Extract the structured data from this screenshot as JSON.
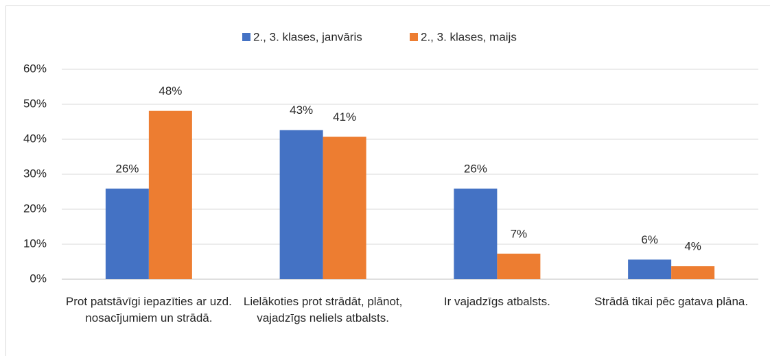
{
  "chart_data": {
    "type": "bar",
    "categories": [
      "Prot patstāvīgi iepazīties ar uzd. nosacījumiem un strādā.",
      "Lielākoties prot strādāt, plānot, vajadzīgs neliels atbalsts.",
      "Ir vajadzīgs atbalsts.",
      "Strādā tikai pēc gatava plāna."
    ],
    "series": [
      {
        "name": "2., 3. klases, janvāris",
        "color": "#4472c4",
        "values": [
          25.9,
          42.6,
          25.9,
          5.6
        ],
        "value_labels": [
          "26%",
          "43%",
          "26%",
          "6%"
        ]
      },
      {
        "name": "2., 3. klases, maijs",
        "color": "#ed7d31",
        "values": [
          48.1,
          40.7,
          7.3,
          3.7
        ],
        "value_labels": [
          "48%",
          "41%",
          "7%",
          "4%"
        ]
      }
    ],
    "ylim": [
      0,
      60
    ],
    "yticks": [
      {
        "value": 0,
        "label": "0%"
      },
      {
        "value": 10,
        "label": "10%"
      },
      {
        "value": 20,
        "label": "20%"
      },
      {
        "value": 30,
        "label": "30%"
      },
      {
        "value": 40,
        "label": "40%"
      },
      {
        "value": 50,
        "label": "50%"
      },
      {
        "value": 60,
        "label": "60%"
      }
    ],
    "grid": true,
    "legend": "top"
  }
}
